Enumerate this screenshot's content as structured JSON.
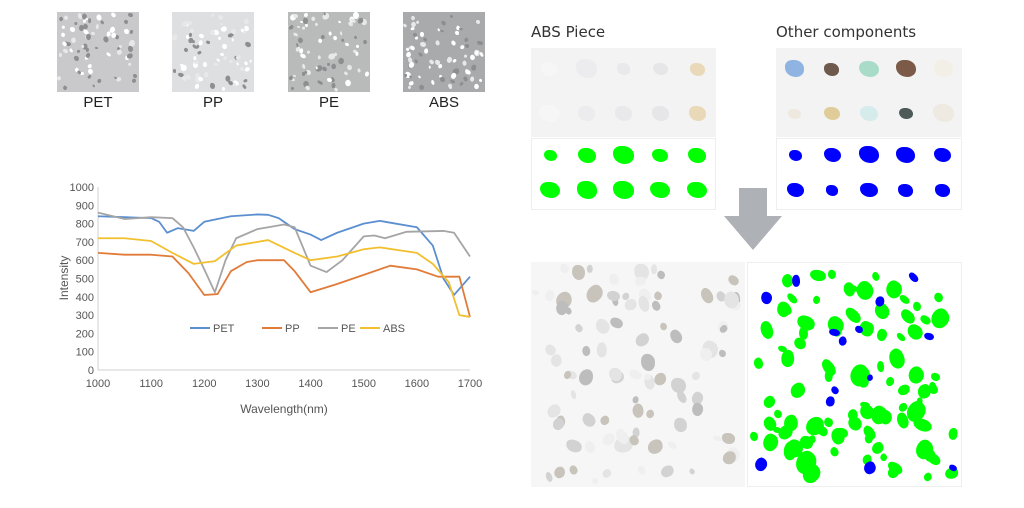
{
  "pellets": [
    {
      "label": "PET",
      "tone": "#c9c9cb"
    },
    {
      "label": "PP",
      "tone": "#dedfe0"
    },
    {
      "label": "PE",
      "tone": "#b9baba"
    },
    {
      "label": "ABS",
      "tone": "#a9aaab"
    }
  ],
  "abs_piece": {
    "title": "ABS Piece",
    "mask_color": "#00ff00"
  },
  "other_components": {
    "title": "Other components",
    "mask_color": "#0000ff"
  },
  "arrow_color": "#aeb1b5",
  "chart_data": {
    "type": "line",
    "title": "",
    "xlabel": "Wavelength(nm)",
    "ylabel": "Intensity",
    "xlim": [
      1000,
      1700
    ],
    "ylim": [
      0,
      1000
    ],
    "xticks": [
      1000,
      1100,
      1200,
      1300,
      1400,
      1500,
      1600,
      1700
    ],
    "yticks": [
      0,
      100,
      200,
      300,
      400,
      500,
      600,
      700,
      800,
      900,
      1000
    ],
    "grid": false,
    "legend": "inside-bottom",
    "series": [
      {
        "name": "PET",
        "color": "#5b8fd0",
        "points": [
          [
            1000,
            840
          ],
          [
            1050,
            835
          ],
          [
            1100,
            830
          ],
          [
            1115,
            810
          ],
          [
            1130,
            750
          ],
          [
            1150,
            775
          ],
          [
            1180,
            760
          ],
          [
            1200,
            810
          ],
          [
            1250,
            840
          ],
          [
            1300,
            850
          ],
          [
            1320,
            848
          ],
          [
            1340,
            830
          ],
          [
            1370,
            770
          ],
          [
            1400,
            740
          ],
          [
            1420,
            710
          ],
          [
            1450,
            750
          ],
          [
            1500,
            800
          ],
          [
            1530,
            815
          ],
          [
            1550,
            805
          ],
          [
            1600,
            780
          ],
          [
            1630,
            680
          ],
          [
            1650,
            500
          ],
          [
            1670,
            410
          ],
          [
            1700,
            510
          ]
        ]
      },
      {
        "name": "PP",
        "color": "#e07b39",
        "points": [
          [
            1000,
            640
          ],
          [
            1050,
            630
          ],
          [
            1100,
            630
          ],
          [
            1140,
            620
          ],
          [
            1170,
            530
          ],
          [
            1200,
            410
          ],
          [
            1225,
            415
          ],
          [
            1250,
            540
          ],
          [
            1280,
            590
          ],
          [
            1300,
            600
          ],
          [
            1350,
            600
          ],
          [
            1370,
            540
          ],
          [
            1400,
            425
          ],
          [
            1450,
            470
          ],
          [
            1500,
            520
          ],
          [
            1550,
            570
          ],
          [
            1600,
            550
          ],
          [
            1640,
            510
          ],
          [
            1680,
            510
          ],
          [
            1700,
            290
          ]
        ]
      },
      {
        "name": "PE",
        "color": "#a5a5a5",
        "points": [
          [
            1000,
            860
          ],
          [
            1050,
            825
          ],
          [
            1100,
            835
          ],
          [
            1140,
            830
          ],
          [
            1160,
            780
          ],
          [
            1180,
            670
          ],
          [
            1200,
            550
          ],
          [
            1220,
            425
          ],
          [
            1240,
            600
          ],
          [
            1260,
            720
          ],
          [
            1300,
            770
          ],
          [
            1350,
            795
          ],
          [
            1370,
            780
          ],
          [
            1400,
            570
          ],
          [
            1430,
            535
          ],
          [
            1460,
            600
          ],
          [
            1500,
            730
          ],
          [
            1520,
            735
          ],
          [
            1540,
            720
          ],
          [
            1580,
            755
          ],
          [
            1650,
            760
          ],
          [
            1670,
            750
          ],
          [
            1700,
            620
          ]
        ]
      },
      {
        "name": "ABS",
        "color": "#f2bf2f",
        "points": [
          [
            1000,
            720
          ],
          [
            1050,
            720
          ],
          [
            1100,
            705
          ],
          [
            1140,
            640
          ],
          [
            1180,
            580
          ],
          [
            1220,
            595
          ],
          [
            1260,
            680
          ],
          [
            1320,
            710
          ],
          [
            1370,
            640
          ],
          [
            1400,
            600
          ],
          [
            1450,
            620
          ],
          [
            1500,
            660
          ],
          [
            1530,
            670
          ],
          [
            1600,
            640
          ],
          [
            1630,
            580
          ],
          [
            1660,
            480
          ],
          [
            1680,
            300
          ],
          [
            1700,
            290
          ]
        ]
      }
    ]
  }
}
